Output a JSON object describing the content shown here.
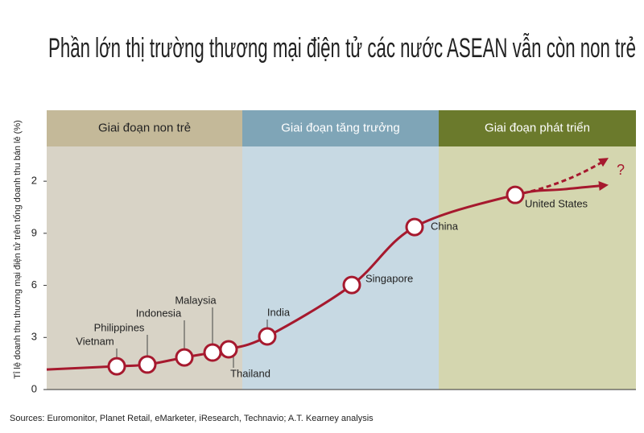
{
  "chart_data": {
    "type": "line",
    "title": "Phần lớn thị trường thương mại điện tử các nước ASEAN vẫn còn non trẻ",
    "y_label": "Tỉ lệ doanh thu thương mại điện tử trên tổng doanh thu bán lẻ (%)",
    "source": "Sources: Euromonitor, Planet Retail, eMarketer, iResearch, Technavio; A.T. Kearney analysis",
    "phases": [
      "Giai đoạn non trẻ",
      "Giai đoạn tăng trưởng",
      "Giai đoạn phát triển"
    ],
    "phase_colors": [
      [
        "#c4b999",
        "#d8d3c6"
      ],
      [
        "#7fa5b7",
        "#c7d9e3"
      ],
      [
        "#6b7a2c",
        "#d4d6af"
      ]
    ],
    "categories": [
      "Vietnam",
      "Philippines",
      "Indonesia",
      "Malaysia",
      "Thailand",
      "India",
      "Singapore",
      "China",
      "United States"
    ],
    "values": [
      1.34,
      1.44,
      1.85,
      2.13,
      2.32,
      3.06,
      6.02,
      9.36,
      11.21
    ],
    "color": "#a6192e",
    "future_label": "?",
    "ylim": [
      0,
      14
    ],
    "yticks": [
      0,
      3,
      6,
      9,
      {
        "value": 12,
        "label": "2"
      }
    ]
  }
}
